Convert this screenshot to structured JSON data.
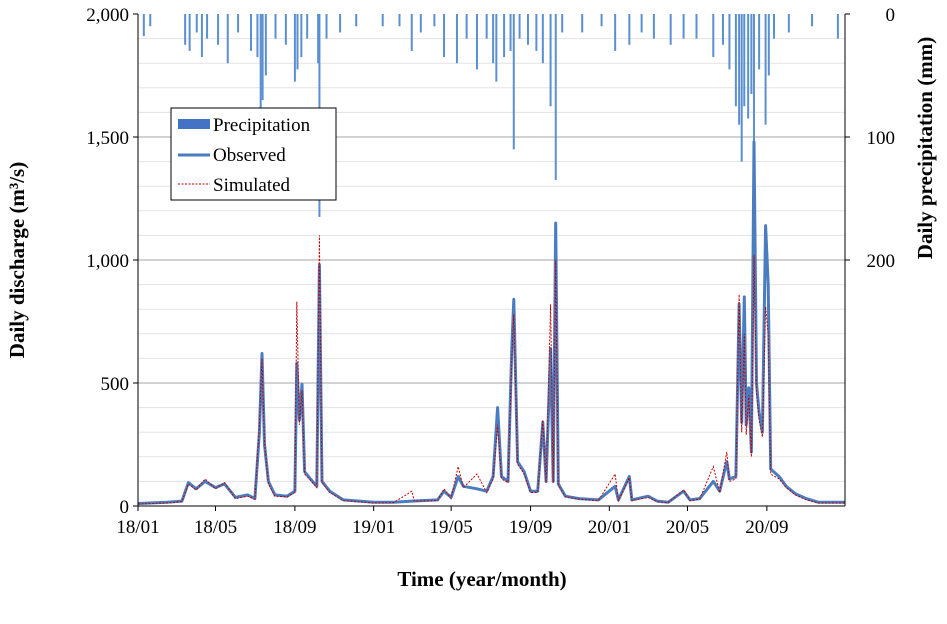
{
  "chart_data": {
    "type": "line",
    "xlabel": "Time (year/month)",
    "ylabel": "Daily discharge (m³/s)",
    "y2label": "Daily precipitation (mm)",
    "ylim": [
      0,
      2000
    ],
    "y2lim": [
      0,
      400
    ],
    "y2_inverted": true,
    "xlim": [
      "2018-01-01",
      "2020-12-31"
    ],
    "x_ticks": [
      "18/01",
      "18/05",
      "18/09",
      "19/01",
      "19/05",
      "19/09",
      "20/01",
      "20/05",
      "20/09"
    ],
    "y_ticks": [
      "0",
      "500",
      "1,000",
      "1,500",
      "2,000"
    ],
    "y2_ticks": [
      "0",
      "100",
      "200"
    ],
    "grid": "horizontal",
    "legend": {
      "placement": "top-left",
      "entries": [
        "Precipitation",
        "Observed",
        "Simulated"
      ]
    },
    "colors": {
      "precipitation": "#5b8fcf",
      "observed": "#4a7dc0",
      "simulated": "#c00000"
    },
    "series": [
      {
        "name": "Observed",
        "style": "solid",
        "points": [
          [
            "2018-01-01",
            10
          ],
          [
            "2018-02-15",
            15
          ],
          [
            "2018-03-10",
            20
          ],
          [
            "2018-03-20",
            95
          ],
          [
            "2018-04-01",
            70
          ],
          [
            "2018-04-15",
            100
          ],
          [
            "2018-05-01",
            75
          ],
          [
            "2018-05-15",
            90
          ],
          [
            "2018-06-01",
            35
          ],
          [
            "2018-06-20",
            45
          ],
          [
            "2018-07-01",
            30
          ],
          [
            "2018-07-08",
            300
          ],
          [
            "2018-07-12",
            620
          ],
          [
            "2018-07-16",
            250
          ],
          [
            "2018-07-22",
            100
          ],
          [
            "2018-08-01",
            45
          ],
          [
            "2018-08-20",
            40
          ],
          [
            "2018-09-01",
            60
          ],
          [
            "2018-09-04",
            580
          ],
          [
            "2018-09-08",
            350
          ],
          [
            "2018-09-12",
            495
          ],
          [
            "2018-09-16",
            140
          ],
          [
            "2018-09-25",
            110
          ],
          [
            "2018-10-05",
            80
          ],
          [
            "2018-10-09",
            980
          ],
          [
            "2018-10-13",
            100
          ],
          [
            "2018-10-25",
            60
          ],
          [
            "2018-11-15",
            25
          ],
          [
            "2019-01-01",
            15
          ],
          [
            "2019-02-01",
            15
          ],
          [
            "2019-03-01",
            20
          ],
          [
            "2019-04-10",
            25
          ],
          [
            "2019-04-20",
            60
          ],
          [
            "2019-05-01",
            35
          ],
          [
            "2019-05-12",
            120
          ],
          [
            "2019-05-20",
            80
          ],
          [
            "2019-06-10",
            70
          ],
          [
            "2019-06-25",
            60
          ],
          [
            "2019-07-05",
            120
          ],
          [
            "2019-07-12",
            400
          ],
          [
            "2019-07-18",
            120
          ],
          [
            "2019-07-28",
            100
          ],
          [
            "2019-08-03",
            640
          ],
          [
            "2019-08-06",
            840
          ],
          [
            "2019-08-12",
            180
          ],
          [
            "2019-08-22",
            140
          ],
          [
            "2019-09-01",
            60
          ],
          [
            "2019-09-12",
            60
          ],
          [
            "2019-09-20",
            340
          ],
          [
            "2019-09-25",
            100
          ],
          [
            "2019-10-02",
            640
          ],
          [
            "2019-10-06",
            100
          ],
          [
            "2019-10-10",
            1150
          ],
          [
            "2019-10-14",
            90
          ],
          [
            "2019-10-25",
            40
          ],
          [
            "2019-11-15",
            30
          ],
          [
            "2019-12-15",
            25
          ],
          [
            "2020-01-10",
            80
          ],
          [
            "2020-01-15",
            25
          ],
          [
            "2020-02-01",
            120
          ],
          [
            "2020-02-05",
            25
          ],
          [
            "2020-03-01",
            40
          ],
          [
            "2020-03-15",
            20
          ],
          [
            "2020-04-01",
            15
          ],
          [
            "2020-04-25",
            60
          ],
          [
            "2020-05-05",
            25
          ],
          [
            "2020-05-20",
            30
          ],
          [
            "2020-06-10",
            100
          ],
          [
            "2020-06-20",
            60
          ],
          [
            "2020-07-01",
            180
          ],
          [
            "2020-07-05",
            110
          ],
          [
            "2020-07-15",
            120
          ],
          [
            "2020-07-20",
            820
          ],
          [
            "2020-07-24",
            340
          ],
          [
            "2020-07-28",
            850
          ],
          [
            "2020-07-31",
            330
          ],
          [
            "2020-08-04",
            480
          ],
          [
            "2020-08-08",
            220
          ],
          [
            "2020-08-12",
            1480
          ],
          [
            "2020-08-16",
            500
          ],
          [
            "2020-08-20",
            380
          ],
          [
            "2020-08-25",
            300
          ],
          [
            "2020-08-30",
            1140
          ],
          [
            "2020-09-03",
            900
          ],
          [
            "2020-09-07",
            150
          ],
          [
            "2020-09-20",
            120
          ],
          [
            "2020-10-01",
            80
          ],
          [
            "2020-10-15",
            50
          ],
          [
            "2020-11-01",
            30
          ],
          [
            "2020-11-20",
            15
          ],
          [
            "2020-12-31",
            15
          ]
        ]
      },
      {
        "name": "Simulated",
        "style": "dotted",
        "points": [
          [
            "2018-01-01",
            8
          ],
          [
            "2018-02-15",
            12
          ],
          [
            "2018-03-10",
            18
          ],
          [
            "2018-03-20",
            90
          ],
          [
            "2018-04-01",
            65
          ],
          [
            "2018-04-15",
            110
          ],
          [
            "2018-05-01",
            70
          ],
          [
            "2018-05-15",
            95
          ],
          [
            "2018-06-01",
            30
          ],
          [
            "2018-06-20",
            40
          ],
          [
            "2018-07-01",
            28
          ],
          [
            "2018-07-08",
            330
          ],
          [
            "2018-07-12",
            600
          ],
          [
            "2018-07-16",
            260
          ],
          [
            "2018-07-22",
            90
          ],
          [
            "2018-08-01",
            40
          ],
          [
            "2018-08-20",
            38
          ],
          [
            "2018-09-01",
            55
          ],
          [
            "2018-09-04",
            830
          ],
          [
            "2018-09-08",
            330
          ],
          [
            "2018-09-12",
            470
          ],
          [
            "2018-09-16",
            130
          ],
          [
            "2018-09-25",
            105
          ],
          [
            "2018-10-05",
            75
          ],
          [
            "2018-10-09",
            1100
          ],
          [
            "2018-10-13",
            95
          ],
          [
            "2018-10-25",
            55
          ],
          [
            "2018-11-15",
            22
          ],
          [
            "2019-01-01",
            12
          ],
          [
            "2019-02-01",
            14
          ],
          [
            "2019-03-01",
            60
          ],
          [
            "2019-03-05",
            20
          ],
          [
            "2019-04-10",
            22
          ],
          [
            "2019-04-20",
            70
          ],
          [
            "2019-05-01",
            30
          ],
          [
            "2019-05-12",
            160
          ],
          [
            "2019-05-20",
            75
          ],
          [
            "2019-06-10",
            130
          ],
          [
            "2019-06-25",
            55
          ],
          [
            "2019-07-05",
            110
          ],
          [
            "2019-07-12",
            330
          ],
          [
            "2019-07-18",
            110
          ],
          [
            "2019-07-28",
            95
          ],
          [
            "2019-08-03",
            600
          ],
          [
            "2019-08-06",
            780
          ],
          [
            "2019-08-12",
            170
          ],
          [
            "2019-08-22",
            130
          ],
          [
            "2019-09-01",
            55
          ],
          [
            "2019-09-12",
            55
          ],
          [
            "2019-09-20",
            350
          ],
          [
            "2019-09-25",
            95
          ],
          [
            "2019-10-02",
            820
          ],
          [
            "2019-10-06",
            95
          ],
          [
            "2019-10-10",
            1000
          ],
          [
            "2019-10-14",
            85
          ],
          [
            "2019-10-25",
            38
          ],
          [
            "2019-11-15",
            28
          ],
          [
            "2019-12-15",
            22
          ],
          [
            "2020-01-10",
            130
          ],
          [
            "2020-01-15",
            22
          ],
          [
            "2020-02-01",
            115
          ],
          [
            "2020-02-05",
            22
          ],
          [
            "2020-03-01",
            35
          ],
          [
            "2020-03-15",
            18
          ],
          [
            "2020-04-01",
            14
          ],
          [
            "2020-04-25",
            65
          ],
          [
            "2020-05-05",
            22
          ],
          [
            "2020-05-20",
            28
          ],
          [
            "2020-06-10",
            160
          ],
          [
            "2020-06-20",
            55
          ],
          [
            "2020-07-01",
            220
          ],
          [
            "2020-07-05",
            100
          ],
          [
            "2020-07-15",
            110
          ],
          [
            "2020-07-20",
            860
          ],
          [
            "2020-07-24",
            300
          ],
          [
            "2020-07-28",
            700
          ],
          [
            "2020-07-31",
            290
          ],
          [
            "2020-08-04",
            450
          ],
          [
            "2020-08-08",
            200
          ],
          [
            "2020-08-12",
            1020
          ],
          [
            "2020-08-16",
            460
          ],
          [
            "2020-08-20",
            350
          ],
          [
            "2020-08-25",
            280
          ],
          [
            "2020-08-30",
            810
          ],
          [
            "2020-09-03",
            700
          ],
          [
            "2020-09-07",
            130
          ],
          [
            "2020-09-20",
            110
          ],
          [
            "2020-10-01",
            75
          ],
          [
            "2020-10-15",
            45
          ],
          [
            "2020-11-01",
            25
          ],
          [
            "2020-11-20",
            12
          ],
          [
            "2020-12-31",
            12
          ]
        ]
      },
      {
        "name": "Precipitation",
        "style": "bars-from-top",
        "points": [
          [
            "2018-01-10",
            18
          ],
          [
            "2018-01-20",
            10
          ],
          [
            "2018-03-15",
            25
          ],
          [
            "2018-03-22",
            30
          ],
          [
            "2018-04-02",
            15
          ],
          [
            "2018-04-10",
            35
          ],
          [
            "2018-04-18",
            20
          ],
          [
            "2018-05-05",
            25
          ],
          [
            "2018-05-20",
            40
          ],
          [
            "2018-06-05",
            15
          ],
          [
            "2018-06-25",
            30
          ],
          [
            "2018-07-05",
            35
          ],
          [
            "2018-07-10",
            90
          ],
          [
            "2018-07-13",
            70
          ],
          [
            "2018-07-18",
            50
          ],
          [
            "2018-08-02",
            20
          ],
          [
            "2018-08-18",
            25
          ],
          [
            "2018-09-01",
            55
          ],
          [
            "2018-09-05",
            45
          ],
          [
            "2018-09-11",
            35
          ],
          [
            "2018-09-20",
            20
          ],
          [
            "2018-10-07",
            40
          ],
          [
            "2018-10-09",
            165
          ],
          [
            "2018-10-20",
            20
          ],
          [
            "2018-11-10",
            15
          ],
          [
            "2018-12-05",
            10
          ],
          [
            "2019-01-15",
            10
          ],
          [
            "2019-02-10",
            10
          ],
          [
            "2019-03-01",
            30
          ],
          [
            "2019-03-15",
            15
          ],
          [
            "2019-04-05",
            10
          ],
          [
            "2019-04-20",
            35
          ],
          [
            "2019-05-10",
            40
          ],
          [
            "2019-05-25",
            20
          ],
          [
            "2019-06-10",
            45
          ],
          [
            "2019-06-25",
            20
          ],
          [
            "2019-07-05",
            40
          ],
          [
            "2019-07-10",
            55
          ],
          [
            "2019-07-22",
            35
          ],
          [
            "2019-08-01",
            30
          ],
          [
            "2019-08-06",
            110
          ],
          [
            "2019-08-15",
            20
          ],
          [
            "2019-08-28",
            25
          ],
          [
            "2019-09-10",
            30
          ],
          [
            "2019-09-20",
            40
          ],
          [
            "2019-10-02",
            75
          ],
          [
            "2019-10-10",
            135
          ],
          [
            "2019-10-20",
            15
          ],
          [
            "2019-11-20",
            15
          ],
          [
            "2019-12-20",
            10
          ],
          [
            "2020-01-10",
            30
          ],
          [
            "2020-02-01",
            25
          ],
          [
            "2020-02-20",
            15
          ],
          [
            "2020-03-10",
            20
          ],
          [
            "2020-04-05",
            25
          ],
          [
            "2020-04-25",
            20
          ],
          [
            "2020-05-15",
            20
          ],
          [
            "2020-06-10",
            35
          ],
          [
            "2020-06-25",
            25
          ],
          [
            "2020-07-05",
            45
          ],
          [
            "2020-07-15",
            75
          ],
          [
            "2020-07-20",
            90
          ],
          [
            "2020-07-24",
            120
          ],
          [
            "2020-07-28",
            75
          ],
          [
            "2020-08-03",
            85
          ],
          [
            "2020-08-08",
            65
          ],
          [
            "2020-08-12",
            105
          ],
          [
            "2020-08-20",
            45
          ],
          [
            "2020-08-30",
            90
          ],
          [
            "2020-09-04",
            50
          ],
          [
            "2020-09-12",
            20
          ],
          [
            "2020-10-05",
            15
          ],
          [
            "2020-11-10",
            10
          ],
          [
            "2020-12-20",
            20
          ]
        ]
      }
    ]
  }
}
